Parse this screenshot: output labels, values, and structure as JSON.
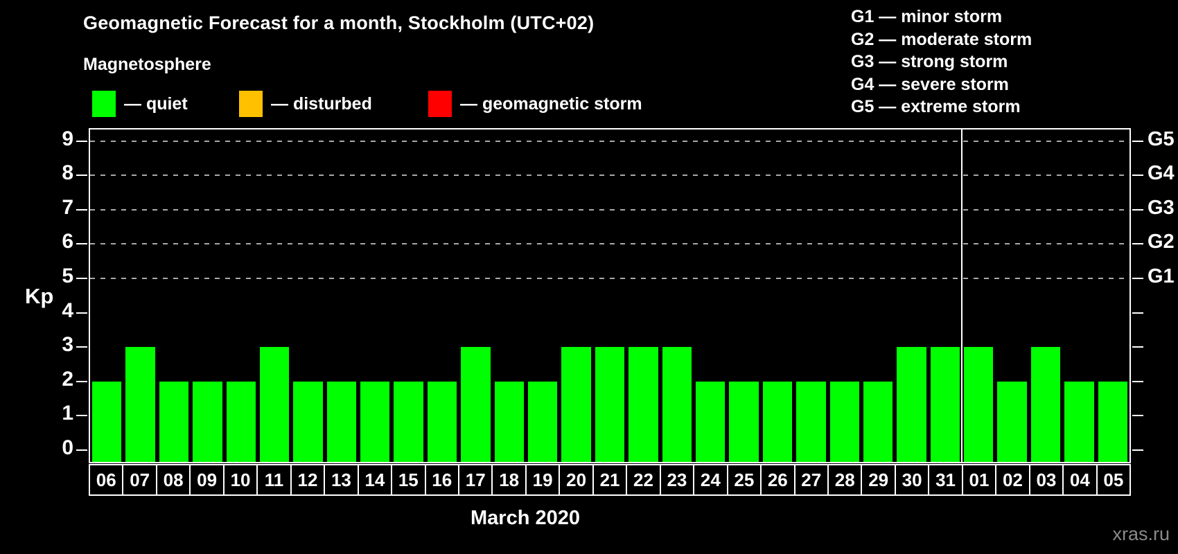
{
  "title": "Geomagnetic Forecast for a month, Stockholm (UTC+02)",
  "subtitle": "Magnetosphere",
  "legend": {
    "items": [
      {
        "label": "— quiet",
        "color": "#00ff00"
      },
      {
        "label": "— disturbed",
        "color": "#ffc000"
      },
      {
        "label": "— geomagnetic storm",
        "color": "#ff0000"
      }
    ]
  },
  "g_legend": {
    "lines": [
      "G1 — minor storm",
      "G2 — moderate storm",
      "G3 — strong storm",
      "G4 — severe storm",
      "G5 — extreme storm"
    ]
  },
  "chart_data": {
    "type": "bar",
    "title": "Geomagnetic Forecast for a month, Stockholm (UTC+02)",
    "xlabel": "March 2020",
    "ylabel": "Kp",
    "ylim": [
      0,
      9
    ],
    "grid": "dashed horizontal at Kp 5-9 only",
    "legend_position": "top-left and top-right",
    "categories": [
      "06",
      "07",
      "08",
      "09",
      "10",
      "11",
      "12",
      "13",
      "14",
      "15",
      "16",
      "17",
      "18",
      "19",
      "20",
      "21",
      "22",
      "23",
      "24",
      "25",
      "26",
      "27",
      "28",
      "29",
      "30",
      "31",
      "01",
      "02",
      "03",
      "04",
      "05"
    ],
    "values": [
      2,
      3,
      2,
      2,
      2,
      3,
      2,
      2,
      2,
      2,
      2,
      3,
      2,
      2,
      3,
      3,
      3,
      3,
      2,
      2,
      2,
      2,
      2,
      2,
      3,
      3,
      3,
      2,
      3,
      2,
      2
    ],
    "bar_color": "#00ff00",
    "gridline_kp": [
      5,
      6,
      7,
      8,
      9
    ],
    "y_ticks": [
      0,
      1,
      2,
      3,
      4,
      5,
      6,
      7,
      8,
      9
    ],
    "right_axis": [
      {
        "kp": 5,
        "label": "G1"
      },
      {
        "kp": 6,
        "label": "G2"
      },
      {
        "kp": 7,
        "label": "G3"
      },
      {
        "kp": 8,
        "label": "G4"
      },
      {
        "kp": 9,
        "label": "G5"
      }
    ],
    "month_separator_index": 26
  },
  "axis": {
    "kp_label": "Kp",
    "month_label": "March 2020"
  },
  "watermark": "xras.ru"
}
